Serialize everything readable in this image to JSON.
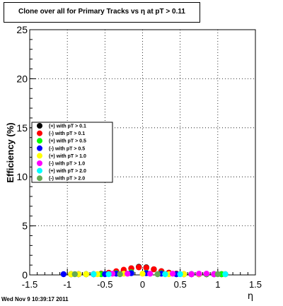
{
  "chart_data": {
    "type": "scatter",
    "title": "Clone  over all for Primary Tracks vs   η at pT > 0.11",
    "xlabel": "η",
    "ylabel": "Efficiency (%)",
    "xlim": [
      -1.5,
      1.5
    ],
    "ylim": [
      0,
      25
    ],
    "xticks": [
      -1.5,
      -1,
      -0.5,
      0,
      0.5,
      1,
      1.5
    ],
    "xtick_labels": [
      "-1.5",
      "-1",
      "-0.5",
      "0",
      "0.5",
      "1",
      "1.5"
    ],
    "yticks": [
      0,
      5,
      10,
      15,
      20,
      25
    ],
    "ytick_labels": [
      "0",
      "5",
      "10",
      "15",
      "20",
      "25"
    ],
    "grid": true,
    "legend_placement": "middle-left",
    "series": [
      {
        "name": "(+) with pT > 0.1",
        "color": "#000000",
        "x": [
          -0.95,
          -0.85,
          -0.75,
          -0.65,
          -0.55,
          -0.45,
          -0.35,
          -0.25,
          -0.15,
          -0.05,
          0.05,
          0.15,
          0.25,
          0.35,
          0.45,
          0.55,
          0.65,
          0.75,
          0.85,
          0.95,
          1.05
        ],
        "y": [
          0.0,
          0.0,
          0.0,
          0.0,
          0.05,
          0.1,
          0.2,
          0.35,
          0.6,
          0.75,
          0.7,
          0.5,
          0.3,
          0.15,
          0.05,
          0.0,
          0.0,
          0.0,
          0.0,
          0.0,
          0.0
        ]
      },
      {
        "name": "(-) with pT > 0.1",
        "color": "#ff0000",
        "x": [
          -0.95,
          -0.85,
          -0.75,
          -0.65,
          -0.55,
          -0.45,
          -0.35,
          -0.25,
          -0.15,
          -0.05,
          0.05,
          0.15,
          0.25,
          0.35,
          0.45,
          0.55,
          0.65,
          0.75,
          0.85,
          0.95,
          1.05,
          1.1
        ],
        "y": [
          0.0,
          0.0,
          0.0,
          0.0,
          0.05,
          0.15,
          0.3,
          0.45,
          0.6,
          0.7,
          0.65,
          0.5,
          0.3,
          0.15,
          0.05,
          0.0,
          0.0,
          0.0,
          0.0,
          0.0,
          0.0,
          0.0
        ]
      },
      {
        "name": "(+) with pT > 0.5",
        "color": "#00ff00",
        "x": [
          -0.95,
          -0.75,
          -0.55,
          -0.35,
          -0.15,
          0.05,
          0.25,
          0.45,
          0.65,
          0.85,
          1.05
        ],
        "y": [
          0.0,
          0.0,
          0.0,
          0.1,
          0.2,
          0.15,
          0.1,
          0.0,
          0.0,
          0.0,
          0.0
        ]
      },
      {
        "name": "(-) with pT > 0.5",
        "color": "#0000ff",
        "x": [
          -1.05,
          -0.85,
          -0.65,
          -0.5,
          -0.35,
          -0.15,
          0.05,
          0.25,
          0.45,
          0.65,
          0.75,
          0.95
        ],
        "y": [
          0.0,
          0.0,
          0.0,
          0.0,
          0.05,
          0.1,
          0.1,
          0.05,
          0.0,
          0.0,
          0.0,
          0.0
        ]
      },
      {
        "name": "(+) with pT > 1.0",
        "color": "#ffff00",
        "x": [
          -0.95,
          -0.85,
          -0.75,
          -0.6,
          -0.25,
          0.0,
          0.35,
          0.55,
          0.75
        ],
        "y": [
          0.0,
          0.0,
          0.0,
          0.0,
          0.05,
          0.05,
          0.0,
          0.0,
          0.0
        ]
      },
      {
        "name": "(-) with pT > 1.0",
        "color": "#ff00ff",
        "x": [
          -0.4,
          -0.2,
          0.1,
          0.4,
          0.65,
          0.75,
          0.85,
          0.95
        ],
        "y": [
          0.05,
          0.05,
          0.05,
          0.05,
          0.0,
          0.05,
          0.05,
          0.0
        ]
      },
      {
        "name": "(+) with pT > 2.0",
        "color": "#00ffff",
        "x": [
          -0.65,
          -0.45,
          0.3,
          0.5,
          1.1
        ],
        "y": [
          0.0,
          0.0,
          0.0,
          0.0,
          0.0
        ]
      },
      {
        "name": "(-) with pT > 2.0",
        "color": "#66aa55",
        "x": [
          -0.9,
          -0.3,
          0.2,
          1.0
        ],
        "y": [
          0.0,
          0.0,
          0.0,
          0.0
        ]
      }
    ]
  },
  "footer": {
    "timestamp": "Wed Nov  9 10:39:17 2011"
  }
}
